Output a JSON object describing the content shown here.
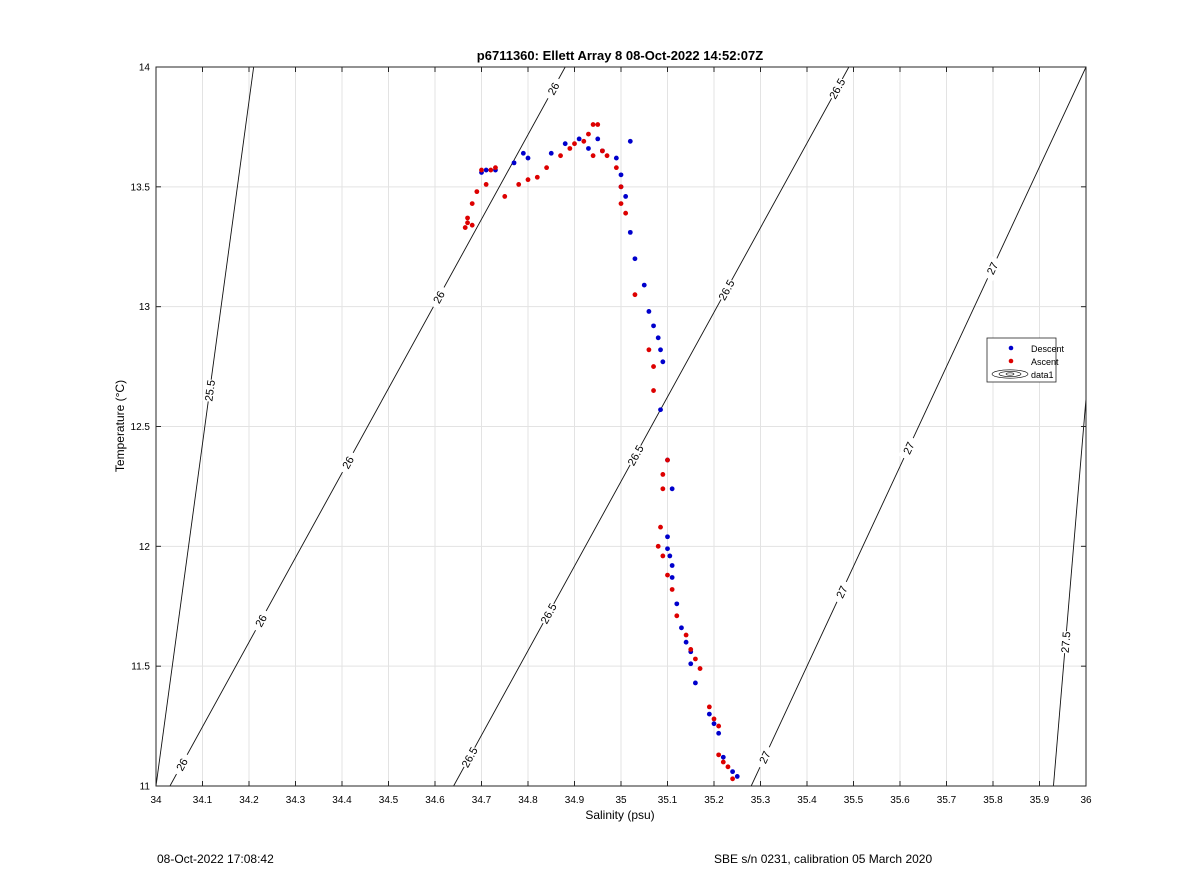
{
  "chart_data": {
    "type": "scatter",
    "title": "p6711360: Ellett Array 8 08-Oct-2022 14:52:07Z",
    "xlabel": "Salinity (psu)",
    "ylabel": "Temperature (°C)",
    "xlim": [
      34,
      36
    ],
    "ylim": [
      11,
      14
    ],
    "xticks": [
      "34",
      "34.1",
      "34.2",
      "34.3",
      "34.4",
      "34.5",
      "34.6",
      "34.7",
      "34.8",
      "34.9",
      "35",
      "35.1",
      "35.2",
      "35.3",
      "35.4",
      "35.5",
      "35.6",
      "35.7",
      "35.8",
      "35.9",
      "36"
    ],
    "yticks": [
      "11",
      "11.5",
      "12",
      "12.5",
      "13",
      "13.5",
      "14"
    ],
    "grid": true,
    "legend_position": "right",
    "legend": [
      "Descent",
      "Ascent",
      "data1"
    ],
    "series": [
      {
        "name": "Descent",
        "color": "#0000cc",
        "x": [
          35.02,
          34.99,
          34.96,
          34.95,
          34.93,
          34.91,
          34.88,
          34.85,
          34.8,
          34.79,
          34.77,
          34.73,
          34.71,
          34.7,
          35.0,
          35.0,
          35.01,
          35.02,
          35.03,
          35.05,
          35.06,
          35.07,
          35.08,
          35.085,
          35.09,
          35.085,
          35.1,
          35.11,
          35.1,
          35.1,
          35.105,
          35.11,
          35.11,
          35.12,
          35.13,
          35.14,
          35.15,
          35.15,
          35.16,
          35.19,
          35.2,
          35.21,
          35.22,
          35.24,
          35.25
        ],
        "y": [
          13.69,
          13.62,
          13.65,
          13.7,
          13.66,
          13.7,
          13.68,
          13.64,
          13.62,
          13.64,
          13.6,
          13.57,
          13.57,
          13.56,
          13.55,
          13.5,
          13.46,
          13.31,
          13.2,
          13.09,
          12.98,
          12.92,
          12.87,
          12.82,
          12.77,
          12.57,
          12.36,
          12.24,
          12.04,
          11.99,
          11.96,
          11.92,
          11.87,
          11.76,
          11.66,
          11.6,
          11.56,
          11.51,
          11.43,
          11.3,
          11.26,
          11.22,
          11.12,
          11.06,
          11.04
        ]
      },
      {
        "name": "Ascent",
        "color": "#dd0000",
        "x": [
          34.94,
          34.95,
          34.93,
          34.92,
          34.9,
          34.89,
          34.87,
          34.84,
          34.82,
          34.8,
          34.78,
          34.75,
          34.73,
          34.7,
          34.69,
          34.68,
          34.67,
          34.665,
          34.67,
          34.68,
          34.71,
          34.72,
          34.94,
          34.96,
          34.97,
          34.99,
          35.0,
          35.0,
          35.01,
          35.03,
          35.06,
          35.07,
          35.07,
          35.09,
          35.09,
          35.1,
          35.08,
          35.085,
          35.09,
          35.1,
          35.11,
          35.12,
          35.14,
          35.15,
          35.16,
          35.17,
          35.19,
          35.2,
          35.21,
          35.21,
          35.22,
          35.23,
          35.24
        ],
        "y": [
          13.76,
          13.76,
          13.72,
          13.69,
          13.68,
          13.66,
          13.63,
          13.58,
          13.54,
          13.53,
          13.51,
          13.46,
          13.58,
          13.57,
          13.48,
          13.43,
          13.37,
          13.33,
          13.35,
          13.34,
          13.51,
          13.57,
          13.63,
          13.65,
          13.63,
          13.58,
          13.5,
          13.43,
          13.39,
          13.05,
          12.82,
          12.75,
          12.65,
          12.3,
          12.24,
          12.36,
          12.0,
          12.08,
          11.96,
          11.88,
          11.82,
          11.71,
          11.63,
          11.57,
          11.53,
          11.49,
          11.33,
          11.28,
          11.25,
          11.13,
          11.1,
          11.08,
          11.03
        ]
      }
    ],
    "contours": [
      {
        "label": "25.5",
        "s0": 34.0,
        "s1": 34.21,
        "label_t": [
          0.55
        ]
      },
      {
        "label": "26",
        "s0": 34.03,
        "s1": 34.88,
        "label_t": [
          0.03,
          0.23,
          0.45,
          0.68,
          0.97
        ]
      },
      {
        "label": "26.5",
        "s0": 34.64,
        "s1": 35.49,
        "label_t": [
          0.04,
          0.24,
          0.46,
          0.69,
          0.97
        ]
      },
      {
        "label": "27",
        "s0": 35.28,
        "s1": 36.0,
        "label_t": [
          0.04,
          0.27,
          0.47,
          0.72
        ]
      },
      {
        "label": "27.5",
        "s0": 35.93,
        "s1": 36.06,
        "label_t": [
          0.2
        ]
      }
    ]
  },
  "footer": {
    "left": "08-Oct-2022 17:08:42",
    "right": "SBE s/n 0231, calibration 05 March 2020"
  }
}
